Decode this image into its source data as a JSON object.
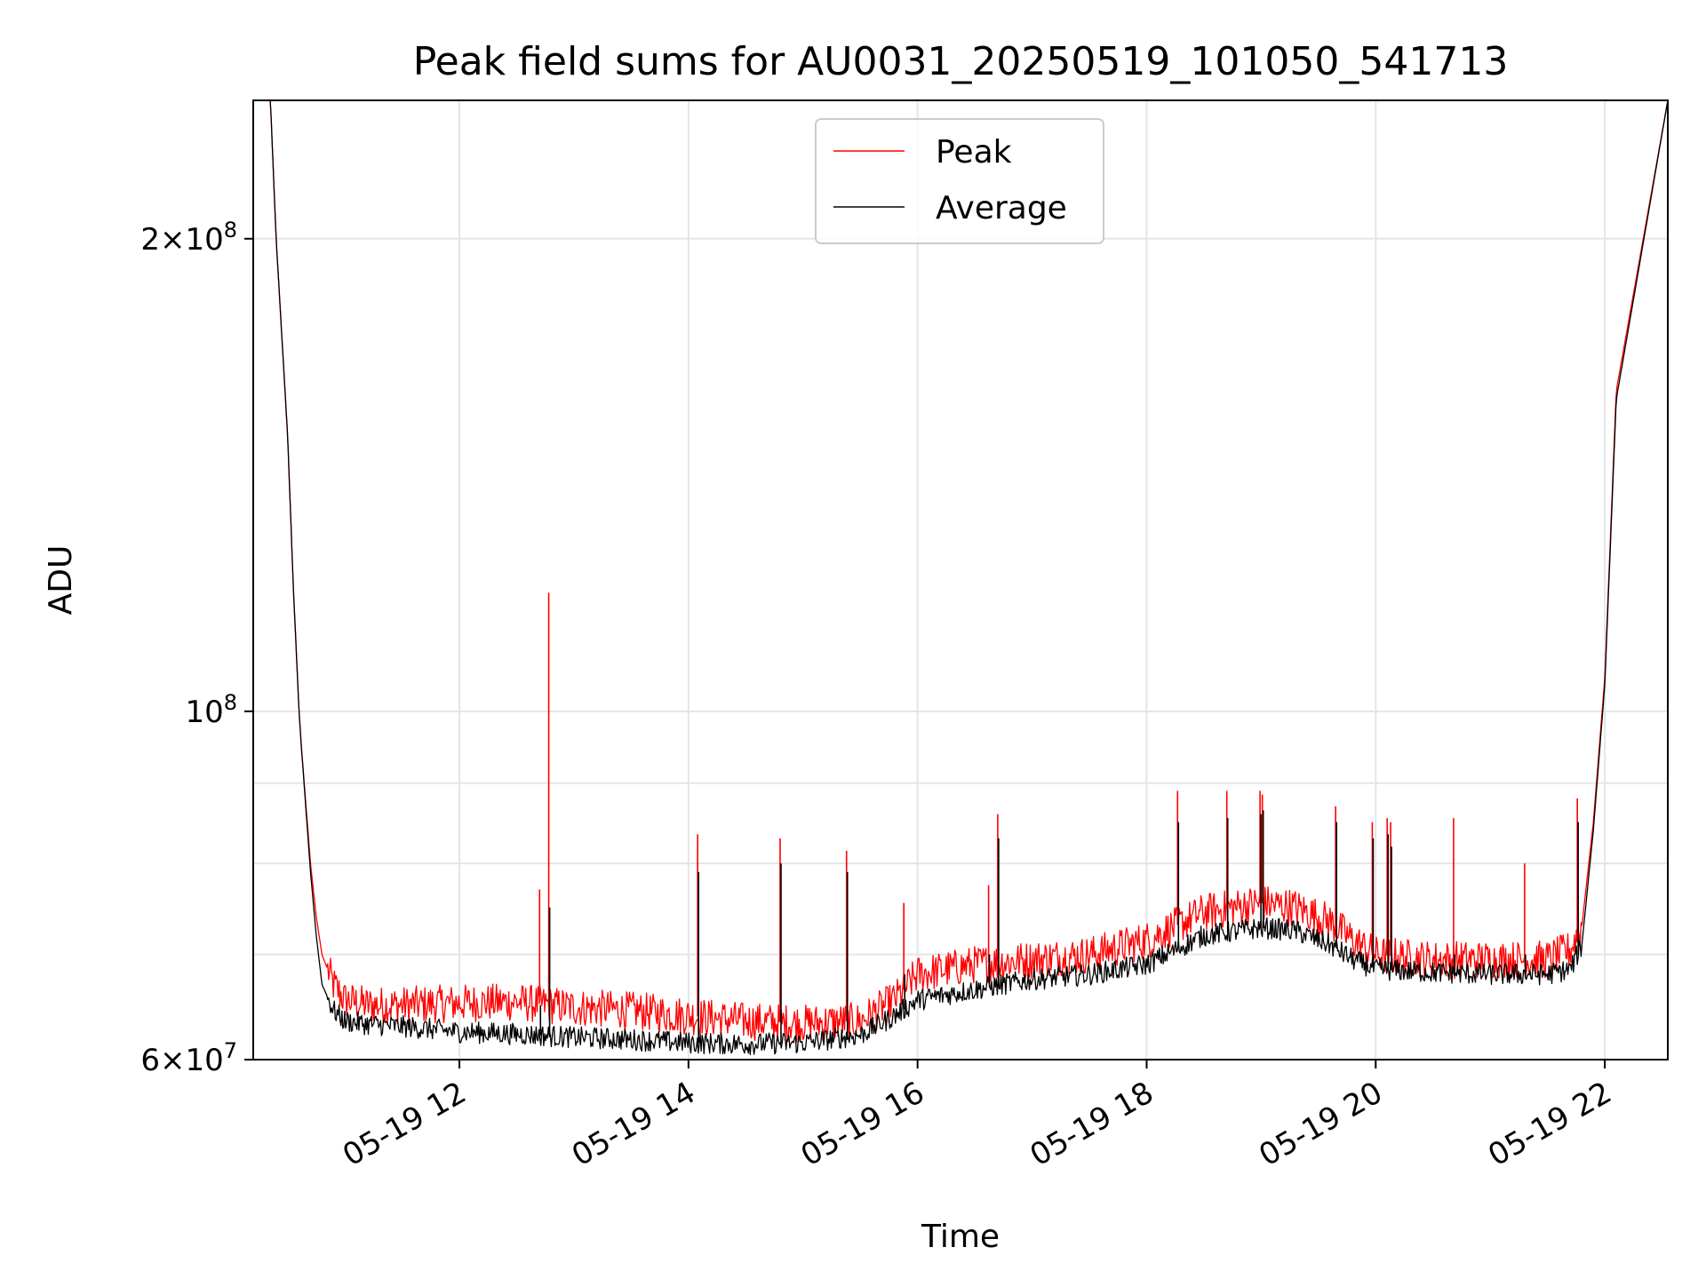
{
  "chart_data": {
    "type": "line",
    "title": "Peak field sums for AU0031_20250519_101050_541713",
    "xlabel": "Time",
    "ylabel": "ADU",
    "x_unit": "hour of 2025-05-19",
    "xlim": [
      10.2,
      22.55
    ],
    "ylim": [
      60000000,
      245000000
    ],
    "yscale": "log",
    "grid": true,
    "legend_position": "upper center",
    "x_ticks": [
      {
        "value": 12,
        "label": "05-19 12"
      },
      {
        "value": 14,
        "label": "05-19 14"
      },
      {
        "value": 16,
        "label": "05-19 16"
      },
      {
        "value": 18,
        "label": "05-19 18"
      },
      {
        "value": 20,
        "label": "05-19 20"
      },
      {
        "value": 22,
        "label": "05-19 22"
      }
    ],
    "y_ticks": [
      {
        "value": 60000000,
        "base": "6",
        "exp": "7"
      },
      {
        "value": 100000000,
        "base": "",
        "exp": "8"
      },
      {
        "value": 200000000,
        "base": "2",
        "exp": "8"
      }
    ],
    "y_minor_grid": [
      70000000,
      80000000,
      90000000
    ],
    "series": [
      {
        "name": "Peak",
        "color": "#ff0000",
        "x": [
          10.2,
          10.35,
          10.4,
          10.5,
          10.55,
          10.6,
          10.62,
          10.7,
          10.75,
          10.8,
          10.9,
          11.0,
          11.2,
          11.5,
          12.0,
          12.5,
          13.0,
          13.5,
          14.0,
          14.5,
          15.0,
          15.5,
          15.8,
          16.0,
          16.5,
          17.0,
          17.5,
          18.0,
          18.5,
          19.0,
          19.3,
          19.6,
          19.8,
          20.0,
          20.5,
          21.0,
          21.5,
          21.7,
          21.8,
          21.9,
          22.0,
          22.1,
          22.55
        ],
        "y": [
          245000000,
          245000000,
          200000000,
          150000000,
          120000000,
          100000000,
          95000000,
          80000000,
          74000000,
          70000000,
          67000000,
          65500000,
          65000000,
          65000000,
          65200000,
          65300000,
          64800000,
          64500000,
          64000000,
          63500000,
          63300000,
          63500000,
          65500000,
          68000000,
          69000000,
          69500000,
          70000000,
          71500000,
          74500000,
          75500000,
          75000000,
          73500000,
          71500000,
          70000000,
          69500000,
          69500000,
          69500000,
          70500000,
          73000000,
          85000000,
          105000000,
          160000000,
          245000000
        ]
      },
      {
        "name": "Average",
        "color": "#000000",
        "x": [
          10.2,
          10.35,
          10.4,
          10.5,
          10.55,
          10.6,
          10.62,
          10.7,
          10.75,
          10.8,
          10.9,
          11.0,
          11.2,
          11.5,
          12.0,
          12.5,
          13.0,
          13.5,
          14.0,
          14.5,
          15.0,
          15.5,
          15.8,
          16.0,
          16.5,
          17.0,
          17.5,
          18.0,
          18.5,
          19.0,
          19.3,
          19.6,
          19.8,
          20.0,
          20.5,
          21.0,
          21.5,
          21.7,
          21.8,
          21.9,
          22.0,
          22.1,
          22.55
        ],
        "y": [
          245000000,
          245000000,
          200000000,
          150000000,
          120000000,
          100000000,
          95000000,
          79000000,
          72000000,
          67000000,
          64500000,
          63500000,
          63200000,
          63000000,
          62500000,
          62300000,
          62000000,
          61800000,
          61500000,
          61400000,
          61500000,
          62200000,
          64000000,
          65500000,
          66500000,
          67500000,
          68000000,
          69000000,
          72000000,
          72800000,
          72500000,
          71000000,
          69500000,
          68500000,
          68200000,
          68000000,
          68000000,
          68500000,
          71000000,
          84000000,
          104000000,
          158000000,
          245000000
        ]
      }
    ],
    "spikes": [
      {
        "x": 12.7,
        "peak": 77000000,
        "average": 65000000
      },
      {
        "x": 12.78,
        "peak": 119000000,
        "average": 75000000
      },
      {
        "x": 14.08,
        "peak": 83500000,
        "average": 79000000
      },
      {
        "x": 14.8,
        "peak": 83000000,
        "average": 80000000
      },
      {
        "x": 15.38,
        "peak": 81500000,
        "average": 79000000
      },
      {
        "x": 15.88,
        "peak": 75500000,
        "average": 68000000
      },
      {
        "x": 16.62,
        "peak": 77500000,
        "average": 70000000
      },
      {
        "x": 16.7,
        "peak": 86000000,
        "average": 83000000
      },
      {
        "x": 18.27,
        "peak": 89000000,
        "average": 85000000
      },
      {
        "x": 18.7,
        "peak": 89000000,
        "average": 85500000
      },
      {
        "x": 18.99,
        "peak": 89000000,
        "average": 86000000
      },
      {
        "x": 19.01,
        "peak": 88500000,
        "average": 86500000
      },
      {
        "x": 19.65,
        "peak": 87000000,
        "average": 85000000
      },
      {
        "x": 19.97,
        "peak": 85000000,
        "average": 83000000
      },
      {
        "x": 20.1,
        "peak": 85500000,
        "average": 83500000
      },
      {
        "x": 20.13,
        "peak": 85000000,
        "average": 82000000
      },
      {
        "x": 20.68,
        "peak": 85500000,
        "average": 70000000
      },
      {
        "x": 21.3,
        "peak": 80000000,
        "average": 70000000
      },
      {
        "x": 21.76,
        "peak": 88000000,
        "average": 85000000
      }
    ]
  }
}
